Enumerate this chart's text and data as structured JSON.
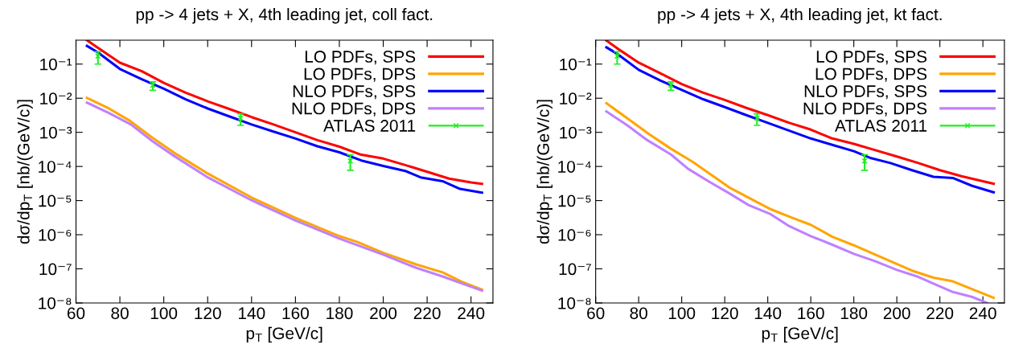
{
  "chart_data": [
    {
      "type": "line",
      "title": "pp -> 4 jets + X, 4th leading jet, coll fact.",
      "xlabel": "p$_{T}$ [GeV/c]",
      "ylabel": "dσ/dp$_{T}$ [nb/(GeV/c)]",
      "xlim": [
        60,
        250
      ],
      "xticks": [
        60,
        80,
        100,
        120,
        140,
        160,
        180,
        200,
        220,
        240
      ],
      "ylim": [
        1e-08,
        0.5
      ],
      "yticks": [
        {
          "value": 1e-08,
          "label": "10⁻⁸"
        },
        {
          "value": 1e-07,
          "label": "10⁻⁷"
        },
        {
          "value": 1e-06,
          "label": "10⁻⁶"
        },
        {
          "value": 1e-05,
          "label": "10⁻⁵"
        },
        {
          "value": 0.0001,
          "label": "10⁻⁴"
        },
        {
          "value": 0.001,
          "label": "10⁻³"
        },
        {
          "value": 0.01,
          "label": "10⁻²"
        },
        {
          "value": 0.1,
          "label": "10⁻¹"
        }
      ],
      "log": "y",
      "legend": "top right",
      "series": [
        {
          "name": "LO PDFs, SPS",
          "color": "#ff0000",
          "x": [
            65,
            70,
            80,
            90,
            100,
            110,
            120,
            130,
            140,
            150,
            160,
            170,
            180,
            190,
            200,
            210,
            220,
            230,
            240,
            245
          ],
          "values": [
            0.5,
            0.3,
            0.11,
            0.062,
            0.028,
            0.0145,
            0.0081,
            0.0048,
            0.0028,
            0.0017,
            0.001,
            0.00059,
            0.00038,
            0.00022,
            0.00017,
            0.00011,
            7e-05,
            4.4e-05,
            3.4e-05,
            3.1e-05
          ]
        },
        {
          "name": "LO PDFs, DPS",
          "color": "#ffa500",
          "x": [
            65,
            75,
            84,
            95,
            105,
            120,
            140,
            160,
            180,
            188,
            200,
            215,
            227,
            236,
            245
          ],
          "values": [
            0.0102,
            0.005,
            0.0023,
            0.00068,
            0.000245,
            6.2e-05,
            1.23e-05,
            3.1e-06,
            9.1e-07,
            6.2e-07,
            2.95e-07,
            1.35e-07,
            7.9e-08,
            4.1e-08,
            2.45e-08
          ]
        },
        {
          "name": "NLO PDFs, SPS",
          "color": "#0000ff",
          "x": [
            65,
            70,
            80,
            90,
            100,
            110,
            120,
            130,
            140,
            150,
            160,
            170,
            180,
            190,
            200,
            210,
            217,
            227,
            235,
            245
          ],
          "values": [
            0.34,
            0.22,
            0.072,
            0.036,
            0.019,
            0.0093,
            0.005,
            0.0029,
            0.0017,
            0.00105,
            0.00066,
            0.00039,
            0.00026,
            0.00015,
            0.000104,
            7.4e-05,
            4.8e-05,
            3.7e-05,
            2.2e-05,
            1.7e-05
          ]
        },
        {
          "name": "NLO PDFs, DPS",
          "color": "#c080ff",
          "x": [
            65,
            75,
            85,
            95,
            105,
            120,
            140,
            160,
            180,
            200,
            215,
            227,
            236,
            245
          ],
          "values": [
            0.0074,
            0.0037,
            0.0017,
            0.00054,
            0.000197,
            4.8e-05,
            1.02e-05,
            2.6e-06,
            7.7e-07,
            2.6e-07,
            1.07e-07,
            6e-08,
            3.7e-08,
            2.3e-08
          ]
        },
        {
          "name": "ATLAS 2011",
          "type": "scatter",
          "marker": "cross",
          "color": "#22ee22",
          "x": [
            70,
            95,
            135,
            185
          ],
          "values": [
            0.17,
            0.024,
            0.0026,
            0.000145
          ],
          "errors": [
            [
              0.1,
              0.23
            ],
            [
              0.017,
              0.03
            ],
            [
              0.0016,
              0.0035
            ],
            [
              7.7e-05,
              0.00022
            ]
          ]
        }
      ]
    },
    {
      "type": "line",
      "title": "pp -> 4 jets + X, 4th leading jet, kt fact.",
      "xlabel": "p$_{T}$ [GeV/c]",
      "ylabel": "dσ/dp$_{T}$ [nb/(GeV/c)]",
      "xlim": [
        60,
        250
      ],
      "xticks": [
        60,
        80,
        100,
        120,
        140,
        160,
        180,
        200,
        220,
        240
      ],
      "ylim": [
        1e-08,
        0.5
      ],
      "yticks": [
        {
          "value": 1e-08,
          "label": "10⁻⁸"
        },
        {
          "value": 1e-07,
          "label": "10⁻⁷"
        },
        {
          "value": 1e-06,
          "label": "10⁻⁶"
        },
        {
          "value": 1e-05,
          "label": "10⁻⁵"
        },
        {
          "value": 0.0001,
          "label": "10⁻⁴"
        },
        {
          "value": 0.001,
          "label": "10⁻³"
        },
        {
          "value": 0.01,
          "label": "10⁻²"
        },
        {
          "value": 0.1,
          "label": "10⁻¹"
        }
      ],
      "log": "y",
      "legend": "top right",
      "series": [
        {
          "name": "LO PDFs, SPS",
          "color": "#ff0000",
          "x": [
            65,
            70,
            80,
            90,
            100,
            110,
            120,
            130,
            140,
            150,
            160,
            170,
            180,
            190,
            200,
            210,
            220,
            230,
            245
          ],
          "values": [
            0.49,
            0.29,
            0.11,
            0.054,
            0.026,
            0.0145,
            0.0089,
            0.0052,
            0.0032,
            0.0019,
            0.0012,
            0.00066,
            0.00046,
            0.0003,
            0.000195,
            0.000126,
            7.8e-05,
            5.2e-05,
            3.1e-05
          ]
        },
        {
          "name": "LO PDFs, DPS",
          "color": "#ffa500",
          "x": [
            65,
            75,
            85,
            95,
            105,
            122,
            141,
            151,
            160,
            170,
            180,
            190,
            207,
            217,
            226,
            245
          ],
          "values": [
            0.0071,
            0.0025,
            0.00087,
            0.00033,
            0.000138,
            2.45e-05,
            5.7e-06,
            3.2e-06,
            1.95e-06,
            8.7e-07,
            4.9e-07,
            2.6e-07,
            8.9e-08,
            5.5e-08,
            4.3e-08,
            1.42e-08
          ]
        },
        {
          "name": "NLO PDFs, SPS",
          "color": "#0000ff",
          "x": [
            65,
            70,
            80,
            90,
            100,
            110,
            120,
            130,
            140,
            150,
            160,
            170,
            180,
            188,
            197,
            207,
            217,
            226,
            235,
            245
          ],
          "values": [
            0.31,
            0.2,
            0.068,
            0.033,
            0.0175,
            0.0093,
            0.0055,
            0.0032,
            0.0019,
            0.00112,
            0.00066,
            0.00043,
            0.00028,
            0.000175,
            0.000126,
            7.8e-05,
            5e-05,
            4.6e-05,
            2.7e-05,
            1.74e-05
          ]
        },
        {
          "name": "NLO PDFs, DPS",
          "color": "#c080ff",
          "x": [
            65,
            75,
            84,
            95,
            103,
            113,
            122,
            131,
            141,
            150,
            160,
            170,
            180,
            190,
            200,
            210,
            217,
            226,
            235,
            242
          ],
          "values": [
            0.0041,
            0.00155,
            0.00059,
            0.000224,
            8.5e-05,
            3.5e-05,
            1.65e-05,
            7.4e-06,
            4.1e-06,
            1.78e-06,
            9.1e-07,
            5.1e-07,
            2.75e-07,
            1.66e-07,
            9.3e-08,
            5.8e-08,
            3.7e-08,
            2.1e-08,
            1.5e-08,
            1e-08
          ]
        },
        {
          "name": "ATLAS 2011",
          "type": "scatter",
          "marker": "cross",
          "color": "#22ee22",
          "x": [
            70,
            95,
            135,
            185
          ],
          "values": [
            0.17,
            0.024,
            0.0026,
            0.000145
          ],
          "errors": [
            [
              0.1,
              0.23
            ],
            [
              0.017,
              0.03
            ],
            [
              0.0016,
              0.0035
            ],
            [
              7.7e-05,
              0.00022
            ]
          ]
        }
      ]
    }
  ]
}
